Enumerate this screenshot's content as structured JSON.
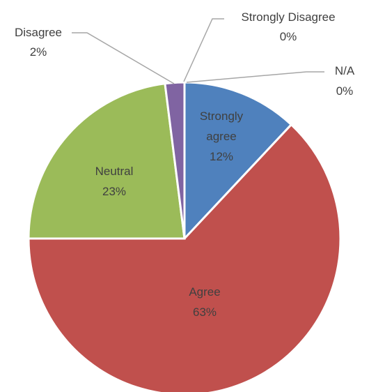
{
  "chart_data": {
    "type": "pie",
    "title": "",
    "legend": "none",
    "slices": [
      {
        "label": "Strongly agree",
        "percent_label": "12%",
        "value": 12,
        "color": "#4f81bd"
      },
      {
        "label": "Agree",
        "percent_label": "63%",
        "value": 63,
        "color": "#c0504d"
      },
      {
        "label": "Neutral",
        "percent_label": "23%",
        "value": 23,
        "color": "#9bbb59"
      },
      {
        "label": "Disagree",
        "percent_label": "2%",
        "value": 2,
        "color": "#8064a2"
      },
      {
        "label": "Strongly Disagree",
        "percent_label": "0%",
        "value": 0,
        "color": "#4bacc6"
      },
      {
        "label": "N/A",
        "percent_label": "0%",
        "value": 0,
        "color": "#f79646"
      }
    ]
  }
}
